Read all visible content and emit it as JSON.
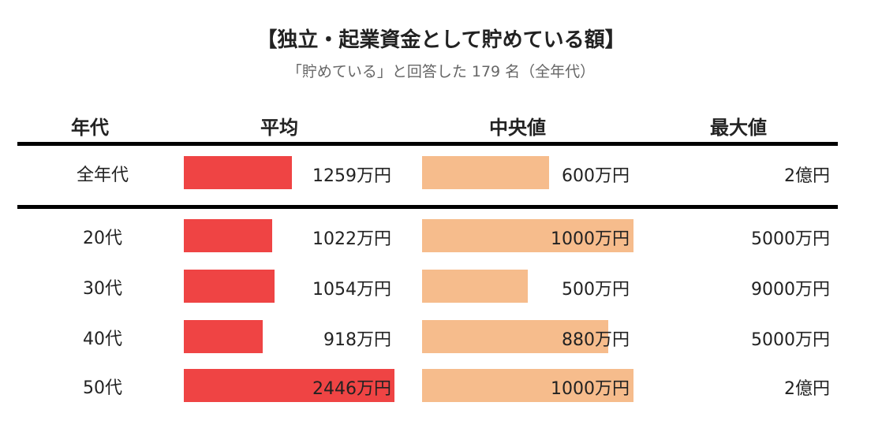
{
  "title": "【独立・起業資金として貯めている額】",
  "subtitle": "「貯めている」と回答した 179 名（全年代）",
  "colors": {
    "avg_bar": "#ef4444",
    "median_bar": "#f6bc8c",
    "rule": "#000000"
  },
  "chart_data": {
    "type": "table",
    "columns": [
      "年代",
      "平均",
      "中央値",
      "最大値"
    ],
    "unit": "万円",
    "rows": [
      {
        "label": "全年代",
        "avg": 1259,
        "avg_text": "1259万円",
        "median": 600,
        "median_text": "600万円",
        "max": 20000,
        "max_text": "2億円"
      },
      {
        "label": "20代",
        "avg": 1022,
        "avg_text": "1022万円",
        "median": 1000,
        "median_text": "1000万円",
        "max": 5000,
        "max_text": "5000万円"
      },
      {
        "label": "30代",
        "avg": 1054,
        "avg_text": "1054万円",
        "median": 500,
        "median_text": "500万円",
        "max": 9000,
        "max_text": "9000万円"
      },
      {
        "label": "40代",
        "avg": 918,
        "avg_text": "918万円",
        "median": 880,
        "median_text": "880万円",
        "max": 5000,
        "max_text": "5000万円"
      },
      {
        "label": "50代",
        "avg": 2446,
        "avg_text": "2446万円",
        "median": 1000,
        "median_text": "1000万円",
        "max": 20000,
        "max_text": "2億円"
      }
    ],
    "avg_scale_max": 2446,
    "median_scale_max": 1000
  }
}
